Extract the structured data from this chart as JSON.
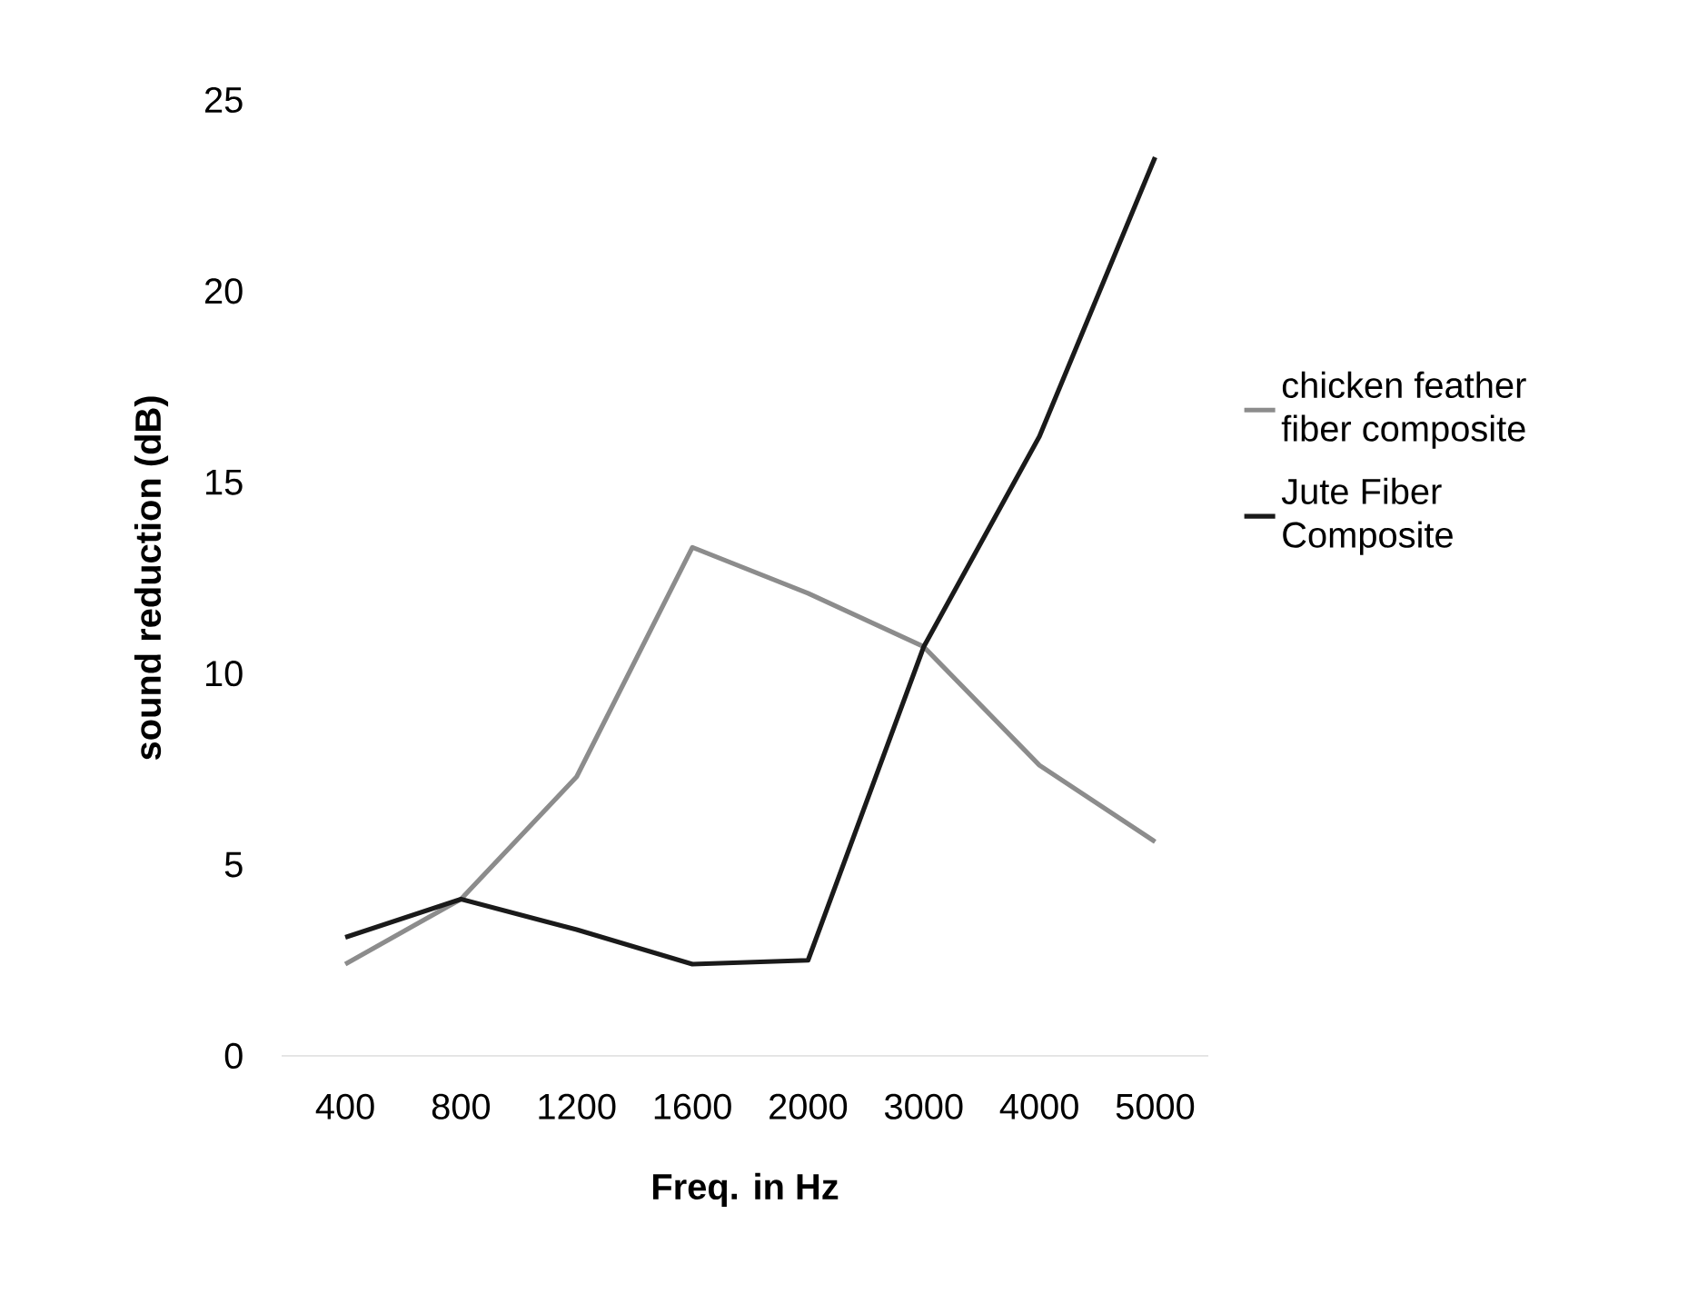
{
  "chart_data": {
    "type": "line",
    "xlabel": "Freq. in Hz",
    "ylabel": "sound reduction (dB)",
    "categories": [
      "400",
      "800",
      "1200",
      "1600",
      "2000",
      "3000",
      "4000",
      "5000"
    ],
    "series": [
      {
        "name": "chicken feather fiber composite",
        "color": "#8c8c8c",
        "values": [
          2.4,
          4.1,
          7.3,
          13.3,
          12.1,
          10.7,
          7.6,
          5.6
        ]
      },
      {
        "name": "Jute Fiber Composite",
        "color": "#1a1a1a",
        "values": [
          3.1,
          4.1,
          3.3,
          2.4,
          2.5,
          10.7,
          16.2,
          23.5
        ]
      }
    ],
    "ylim": [
      0,
      25
    ],
    "yticks": [
      0,
      5,
      10,
      15,
      20,
      25
    ],
    "grid": false,
    "legend": "right",
    "marker": "none",
    "line_style": "solid"
  }
}
